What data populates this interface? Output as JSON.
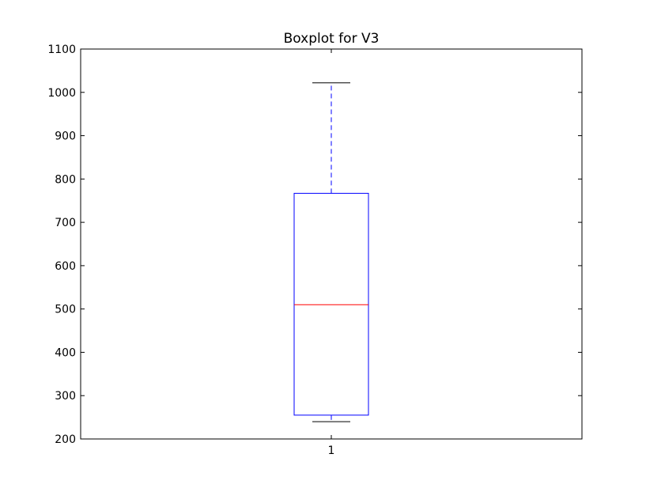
{
  "chart_data": {
    "type": "boxplot",
    "title": "Boxplot for V3",
    "xlabel": "",
    "ylabel": "",
    "ylim": [
      200,
      1100
    ],
    "yticks": [
      200,
      300,
      400,
      500,
      600,
      700,
      800,
      900,
      1000,
      1100
    ],
    "categories": [
      "1"
    ],
    "boxes": [
      {
        "category": "1",
        "whisker_low": 240,
        "q1": 255,
        "median": 510,
        "q3": 767,
        "whisker_high": 1022
      }
    ],
    "grid": false,
    "colors": {
      "box": "#0000ff",
      "median": "#ff0000",
      "whisker": "#0000ff",
      "cap": "#000000",
      "axes": "#000000"
    }
  }
}
